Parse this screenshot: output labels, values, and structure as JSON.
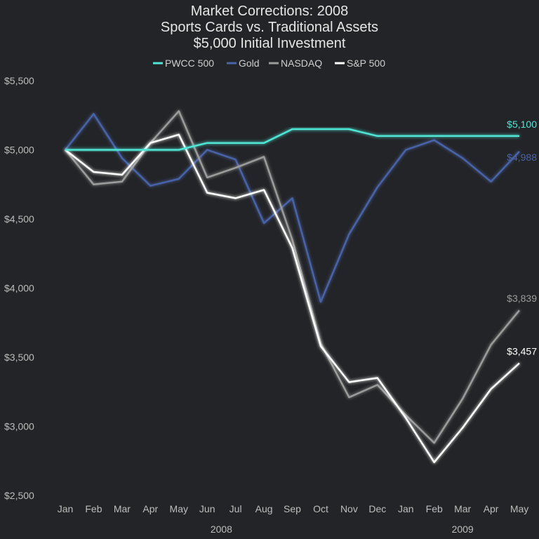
{
  "chart_data": {
    "type": "line",
    "title": [
      "Market Corrections: 2008",
      "Sports Cards vs. Traditional Assets",
      "$5,000 Initial Investment"
    ],
    "xlabel": "",
    "ylabel": "",
    "categories": [
      "Jan",
      "Feb",
      "Mar",
      "Apr",
      "May",
      "Jun",
      "Jul",
      "Aug",
      "Sep",
      "Oct",
      "Nov",
      "Dec",
      "Jan",
      "Feb",
      "Mar",
      "Apr",
      "May"
    ],
    "year_labels": [
      {
        "label": "2008",
        "center_index": 5.5
      },
      {
        "label": "2009",
        "center_index": 14
      }
    ],
    "ylim": [
      2500,
      5500
    ],
    "yticks": [
      2500,
      3000,
      3500,
      4000,
      4500,
      5000,
      5500
    ],
    "ytick_labels": [
      "$2,500",
      "$3,000",
      "$3,500",
      "$4,000",
      "$4,500",
      "$5,000",
      "$5,500"
    ],
    "grid": false,
    "legend_position": "top-center",
    "series": [
      {
        "name": "PWCC 500",
        "color": "#4fe6d6",
        "end_label": "$5,100",
        "values": [
          5000,
          5000,
          5000,
          5000,
          5000,
          5050,
          5050,
          5050,
          5150,
          5150,
          5150,
          5100,
          5100,
          5100,
          5100,
          5100,
          5100
        ]
      },
      {
        "name": "Gold",
        "color": "#4a64a8",
        "end_label": "$4,988",
        "values": [
          5000,
          5260,
          4940,
          4740,
          4790,
          5000,
          4930,
          4470,
          4650,
          3900,
          4390,
          4730,
          5000,
          5070,
          4940,
          4770,
          4988
        ]
      },
      {
        "name": "NASDAQ",
        "color": "#9c9c9c",
        "end_label": "$3,839",
        "values": [
          5000,
          4750,
          4770,
          5050,
          5280,
          4800,
          4870,
          4950,
          4350,
          3600,
          3210,
          3300,
          3080,
          2880,
          3200,
          3590,
          3839
        ]
      },
      {
        "name": "S&P 500",
        "color": "#ffffff",
        "end_label": "$3,457",
        "values": [
          5000,
          4840,
          4820,
          5050,
          5110,
          4690,
          4650,
          4710,
          4290,
          3580,
          3320,
          3350,
          3060,
          2740,
          2990,
          3270,
          3457
        ]
      }
    ]
  }
}
